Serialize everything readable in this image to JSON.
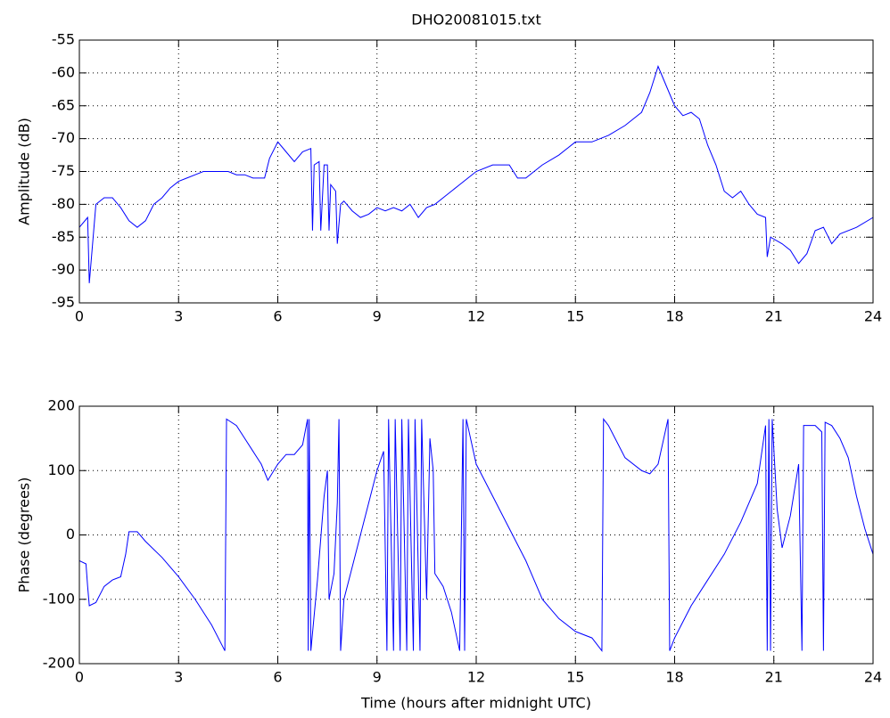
{
  "chart_data": [
    {
      "type": "line",
      "title": "DHO20081015.txt",
      "ylabel": "Amplitude (dB)",
      "color": "#0000ff",
      "grid": true,
      "xlim": [
        0,
        24
      ],
      "xticks": [
        0,
        3,
        6,
        9,
        12,
        15,
        18,
        21,
        24
      ],
      "ylim": [
        -95,
        -55
      ],
      "yticks": [
        -95,
        -90,
        -85,
        -80,
        -75,
        -70,
        -65,
        -60,
        -55
      ],
      "x": [
        0,
        0.25,
        0.3,
        0.5,
        0.75,
        1.0,
        1.25,
        1.5,
        1.75,
        2.0,
        2.25,
        2.5,
        2.75,
        3.0,
        3.25,
        3.5,
        3.75,
        4.0,
        4.25,
        4.5,
        4.75,
        5.0,
        5.25,
        5.5,
        5.6,
        5.75,
        6.0,
        6.25,
        6.5,
        6.75,
        7.0,
        7.05,
        7.1,
        7.25,
        7.3,
        7.4,
        7.5,
        7.55,
        7.6,
        7.75,
        7.8,
        7.9,
        8.0,
        8.25,
        8.5,
        8.75,
        9.0,
        9.25,
        9.5,
        9.75,
        10.0,
        10.25,
        10.5,
        10.75,
        11.0,
        11.25,
        11.5,
        11.75,
        12.0,
        12.5,
        13.0,
        13.25,
        13.5,
        13.75,
        14.0,
        14.5,
        15.0,
        15.5,
        16.0,
        16.5,
        17.0,
        17.25,
        17.5,
        17.75,
        18.0,
        18.25,
        18.5,
        18.75,
        19.0,
        19.25,
        19.5,
        19.75,
        20.0,
        20.25,
        20.5,
        20.75,
        20.8,
        20.9,
        21.25,
        21.5,
        21.75,
        22.0,
        22.25,
        22.5,
        22.75,
        23.0,
        23.5,
        24.0
      ],
      "values": [
        -83.5,
        -82,
        -92,
        -80,
        -79,
        -79,
        -80.5,
        -82.5,
        -83.5,
        -82.5,
        -80,
        -79,
        -77.5,
        -76.5,
        -76,
        -75.5,
        -75,
        -75,
        -75,
        -75,
        -75.5,
        -75.5,
        -76,
        -76,
        -76,
        -73,
        -70.5,
        -72,
        -73.5,
        -72,
        -71.5,
        -84,
        -74,
        -73.5,
        -84,
        -74,
        -74,
        -84,
        -77,
        -78,
        -86,
        -80,
        -79.5,
        -81,
        -82,
        -81.5,
        -80.5,
        -81,
        -80.5,
        -81,
        -80,
        -82,
        -80.5,
        -80,
        -79,
        -78,
        -77,
        -76,
        -75,
        -74,
        -74,
        -76,
        -76,
        -75,
        -74,
        -72.5,
        -70.5,
        -70.5,
        -69.5,
        -68,
        -66,
        -63,
        -59,
        -62,
        -65,
        -66.5,
        -66,
        -67,
        -71,
        -74,
        -78,
        -79,
        -78,
        -80,
        -81.5,
        -82,
        -88,
        -85,
        -86,
        -87,
        -89,
        -87.5,
        -84,
        -83.5,
        -86,
        -84.5,
        -83.5,
        -82
      ]
    },
    {
      "type": "line",
      "ylabel": "Phase (degrees)",
      "xlabel": "Time (hours after midnight UTC)",
      "color": "#0000ff",
      "grid": true,
      "xlim": [
        0,
        24
      ],
      "xticks": [
        0,
        3,
        6,
        9,
        12,
        15,
        18,
        21,
        24
      ],
      "ylim": [
        -200,
        200
      ],
      "yticks": [
        -200,
        -100,
        0,
        100,
        200
      ],
      "x": [
        0,
        0.2,
        0.25,
        0.3,
        0.5,
        0.75,
        1.0,
        1.25,
        1.4,
        1.5,
        1.75,
        2.0,
        2.5,
        3.0,
        3.5,
        4.0,
        4.4,
        4.45,
        4.75,
        5.0,
        5.25,
        5.5,
        5.7,
        6.0,
        6.25,
        6.5,
        6.75,
        6.9,
        6.92,
        6.95,
        7.0,
        7.2,
        7.4,
        7.5,
        7.55,
        7.7,
        7.8,
        7.85,
        7.9,
        8.0,
        8.25,
        8.5,
        8.75,
        9.0,
        9.2,
        9.3,
        9.35,
        9.5,
        9.55,
        9.7,
        9.75,
        9.9,
        9.95,
        10.1,
        10.15,
        10.3,
        10.35,
        10.5,
        10.6,
        10.7,
        10.75,
        11.0,
        11.25,
        11.5,
        11.6,
        11.65,
        11.7,
        12.0,
        12.5,
        13.0,
        13.5,
        14.0,
        14.5,
        15.0,
        15.5,
        15.8,
        15.85,
        16.0,
        16.5,
        17.0,
        17.25,
        17.5,
        17.8,
        17.85,
        18.0,
        18.5,
        19.0,
        19.5,
        20.0,
        20.5,
        20.75,
        20.8,
        20.85,
        20.9,
        20.95,
        21.1,
        21.25,
        21.5,
        21.75,
        21.85,
        21.9,
        22.25,
        22.45,
        22.5,
        22.55,
        22.75,
        23.0,
        23.25,
        23.5,
        23.75,
        24.0
      ],
      "values": [
        -40,
        -45,
        -80,
        -110,
        -105,
        -80,
        -70,
        -65,
        -30,
        5,
        5,
        -10,
        -35,
        -65,
        -100,
        -140,
        -180,
        180,
        170,
        150,
        130,
        110,
        85,
        110,
        125,
        125,
        140,
        180,
        -180,
        180,
        -180,
        -70,
        60,
        100,
        -100,
        -60,
        50,
        180,
        -180,
        -100,
        -50,
        0,
        50,
        100,
        130,
        -180,
        180,
        -180,
        180,
        -180,
        180,
        -180,
        180,
        -180,
        180,
        -180,
        180,
        -100,
        150,
        100,
        -60,
        -80,
        -120,
        -180,
        180,
        -180,
        180,
        110,
        60,
        10,
        -40,
        -100,
        -130,
        -150,
        -160,
        -180,
        180,
        170,
        120,
        100,
        95,
        110,
        180,
        -180,
        -160,
        -110,
        -70,
        -30,
        20,
        80,
        170,
        -180,
        180,
        -180,
        180,
        40,
        -20,
        30,
        110,
        -180,
        170,
        170,
        160,
        -180,
        175,
        170,
        150,
        120,
        60,
        10,
        -30
      ]
    }
  ]
}
